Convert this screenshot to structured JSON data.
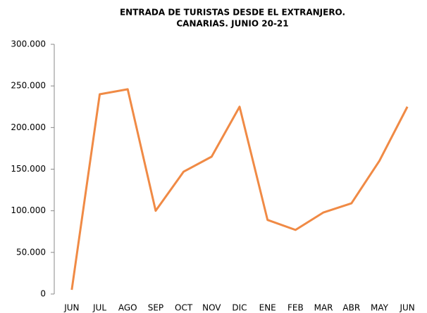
{
  "chart_data": {
    "type": "line",
    "title": [
      "ENTRADA DE TURISTAS DESDE EL EXTRANJERO.",
      "CANARIAS. JUNIO 20-21"
    ],
    "categories": [
      "JUN",
      "JUL",
      "AGO",
      "SEP",
      "OCT",
      "NOV",
      "DIC",
      "ENE",
      "FEB",
      "MAR",
      "ABR",
      "MAY",
      "JUN"
    ],
    "values": [
      5000,
      240000,
      246000,
      100000,
      147000,
      165000,
      225000,
      89000,
      77000,
      98000,
      109000,
      160000,
      225000
    ],
    "color": "#F08A45",
    "ylim": [
      0,
      300000
    ],
    "yticks": [
      0,
      {
        "value": 50000,
        "label": "50.000"
      },
      {
        "value": 100000,
        "label": "100.000"
      },
      {
        "value": 150000,
        "label": "150.000"
      },
      {
        "value": 200000,
        "label": "200.000"
      },
      {
        "value": 250000,
        "label": "250.000"
      },
      {
        "value": 300000,
        "label": "300.000"
      }
    ],
    "grid": false
  }
}
